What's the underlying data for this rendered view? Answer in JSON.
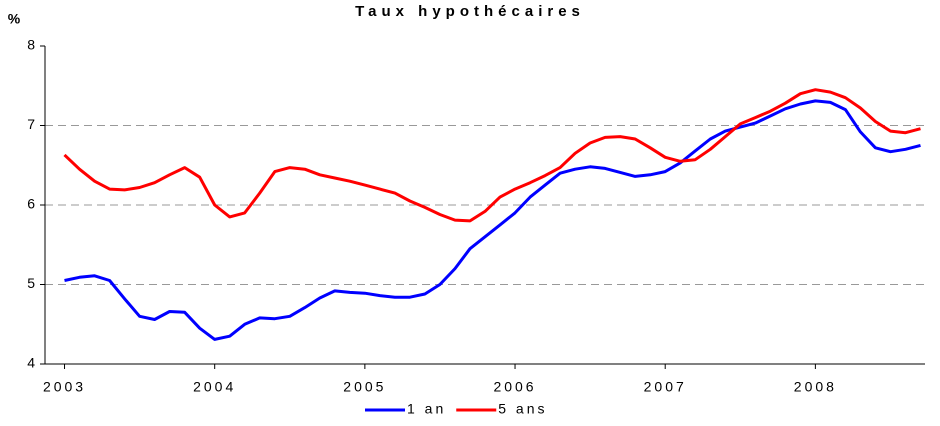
{
  "chart_data": {
    "type": "line",
    "title": "Taux hypothécaires",
    "y_label": "%",
    "x": [
      2003.0,
      2003.1,
      2003.2,
      2003.3,
      2003.4,
      2003.5,
      2003.6,
      2003.7,
      2003.8,
      2003.9,
      2004.0,
      2004.1,
      2004.2,
      2004.3,
      2004.4,
      2004.5,
      2004.6,
      2004.7,
      2004.8,
      2004.9,
      2005.0,
      2005.1,
      2005.2,
      2005.3,
      2005.4,
      2005.5,
      2005.6,
      2005.7,
      2005.8,
      2005.9,
      2006.0,
      2006.1,
      2006.2,
      2006.3,
      2006.4,
      2006.5,
      2006.6,
      2006.7,
      2006.8,
      2006.9,
      2007.0,
      2007.1,
      2007.2,
      2007.3,
      2007.4,
      2007.5,
      2007.6,
      2007.7,
      2007.8,
      2007.9,
      2008.0,
      2008.1,
      2008.2,
      2008.3,
      2008.4,
      2008.5,
      2008.6,
      2008.7
    ],
    "series": [
      {
        "name": "1 an",
        "color": "#0000ff",
        "values": [
          5.05,
          5.09,
          5.11,
          5.05,
          4.82,
          4.6,
          4.56,
          4.66,
          4.65,
          4.45,
          4.31,
          4.35,
          4.5,
          4.58,
          4.57,
          4.6,
          4.71,
          4.83,
          4.92,
          4.9,
          4.89,
          4.86,
          4.84,
          4.84,
          4.88,
          5.0,
          5.2,
          5.45,
          5.6,
          5.75,
          5.9,
          6.1,
          6.25,
          6.4,
          6.45,
          6.48,
          6.46,
          6.41,
          6.36,
          6.38,
          6.42,
          6.53,
          6.68,
          6.83,
          6.93,
          6.98,
          7.03,
          7.12,
          7.21,
          7.27,
          7.31,
          7.29,
          7.2,
          6.92,
          6.72,
          6.67,
          6.7,
          6.75
        ]
      },
      {
        "name": "5 ans",
        "color": "#ff0000",
        "values": [
          6.63,
          6.45,
          6.3,
          6.2,
          6.19,
          6.22,
          6.28,
          6.38,
          6.47,
          6.35,
          6.0,
          5.85,
          5.9,
          6.15,
          6.42,
          6.47,
          6.45,
          6.38,
          6.34,
          6.3,
          6.25,
          6.2,
          6.15,
          6.05,
          5.97,
          5.88,
          5.81,
          5.8,
          5.92,
          6.1,
          6.2,
          6.28,
          6.37,
          6.47,
          6.65,
          6.78,
          6.85,
          6.86,
          6.83,
          6.72,
          6.6,
          6.55,
          6.57,
          6.7,
          6.86,
          7.02,
          7.1,
          7.18,
          7.28,
          7.4,
          7.45,
          7.42,
          7.35,
          7.22,
          7.05,
          6.93,
          6.91,
          6.96
        ]
      }
    ],
    "xlim": [
      2002.87,
      2008.73
    ],
    "xticks": [
      2003,
      2004,
      2005,
      2006,
      2007,
      2008
    ],
    "ylim": [
      4,
      8
    ],
    "yticks": [
      4,
      5,
      6,
      7,
      8
    ],
    "grid": true,
    "legend": "bottom"
  }
}
